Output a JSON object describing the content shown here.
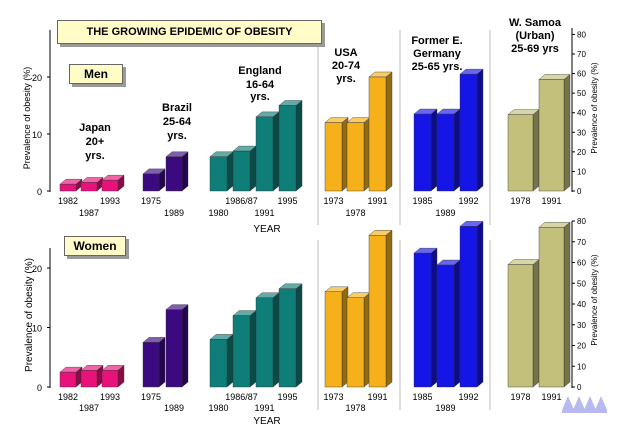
{
  "title": "THE GROWING EPIDEMIC OF OBESITY",
  "xlabel": "YEAR",
  "ylabel_left": "Prevalence of obesity (%)",
  "ylabel_right": "Prevalence of obesity (%)",
  "panels": {
    "men": "Men",
    "women": "Women"
  },
  "countries": [
    {
      "name": "Japan",
      "age": "20+ yrs.",
      "color": "#e8127a"
    },
    {
      "name": "Brazil",
      "age": "25-64 yrs.",
      "color": "#3b0a80"
    },
    {
      "name": "England",
      "age": "16-64 yrs.",
      "color": "#0f7d78"
    },
    {
      "name": "USA",
      "age": "20-74 yrs.",
      "color": "#f5b01a"
    },
    {
      "name": "Former E. Germany",
      "age": "25-65 yrs.",
      "color": "#1515e8"
    },
    {
      "name": "W. Samoa (Urban)",
      "age": "25-69 yrs",
      "color": "#c2c07a"
    }
  ],
  "chart_data": [
    {
      "type": "bar",
      "panel": "Men",
      "ylabel": "Prevalence of obesity (%)",
      "ylim": [
        0,
        30
      ],
      "yticks": [
        "0",
        "10",
        "20"
      ],
      "right_ylim": [
        0,
        80
      ],
      "right_yticks": [
        "0",
        "10",
        "20",
        "30",
        "40",
        "50",
        "60",
        "70",
        "80"
      ],
      "groups": [
        {
          "country": "Japan",
          "years": [
            "1982",
            "1987",
            "1993"
          ],
          "values": [
            1.2,
            1.5,
            1.9
          ]
        },
        {
          "country": "Brazil",
          "years": [
            "1975",
            "1989"
          ],
          "values": [
            3.0,
            6.0
          ]
        },
        {
          "country": "England",
          "years": [
            "1980",
            "1986/87",
            "1991",
            "1995"
          ],
          "values": [
            6.0,
            7.0,
            13.0,
            15.0
          ]
        },
        {
          "country": "USA",
          "years": [
            "1973",
            "1978",
            "1991"
          ],
          "values": [
            12.0,
            12.0,
            20.0
          ]
        },
        {
          "country": "Former E. Germany",
          "years": [
            "1985",
            "1989",
            "1992"
          ],
          "values": [
            13.5,
            13.5,
            20.5
          ]
        },
        {
          "country": "W. Samoa (Urban)",
          "axis": "right",
          "years": [
            "1978",
            "1991"
          ],
          "values": [
            39.0,
            57.0
          ]
        }
      ]
    },
    {
      "type": "bar",
      "panel": "Women",
      "ylabel": "Prevalence of obesity (%)",
      "ylim": [
        0,
        30
      ],
      "yticks": [
        "0",
        "10",
        "20"
      ],
      "right_ylim": [
        0,
        80
      ],
      "right_yticks": [
        "0",
        "10",
        "20",
        "30",
        "40",
        "50",
        "60",
        "70",
        "80"
      ],
      "groups": [
        {
          "country": "Japan",
          "years": [
            "1982",
            "1987",
            "1993"
          ],
          "values": [
            2.5,
            2.8,
            2.8
          ]
        },
        {
          "country": "Brazil",
          "years": [
            "1975",
            "1989"
          ],
          "values": [
            7.5,
            13.0
          ]
        },
        {
          "country": "England",
          "years": [
            "1980",
            "1986/87",
            "1991",
            "1995"
          ],
          "values": [
            8.0,
            12.0,
            15.0,
            16.5
          ]
        },
        {
          "country": "USA",
          "years": [
            "1973",
            "1978",
            "1991"
          ],
          "values": [
            16.0,
            15.0,
            25.5
          ]
        },
        {
          "country": "Former E. Germany",
          "years": [
            "1985",
            "1989",
            "1992"
          ],
          "values": [
            22.5,
            20.5,
            27.0
          ]
        },
        {
          "country": "W. Samoa (Urban)",
          "axis": "right",
          "years": [
            "1978",
            "1991"
          ],
          "values": [
            59.0,
            77.0
          ]
        }
      ]
    }
  ]
}
